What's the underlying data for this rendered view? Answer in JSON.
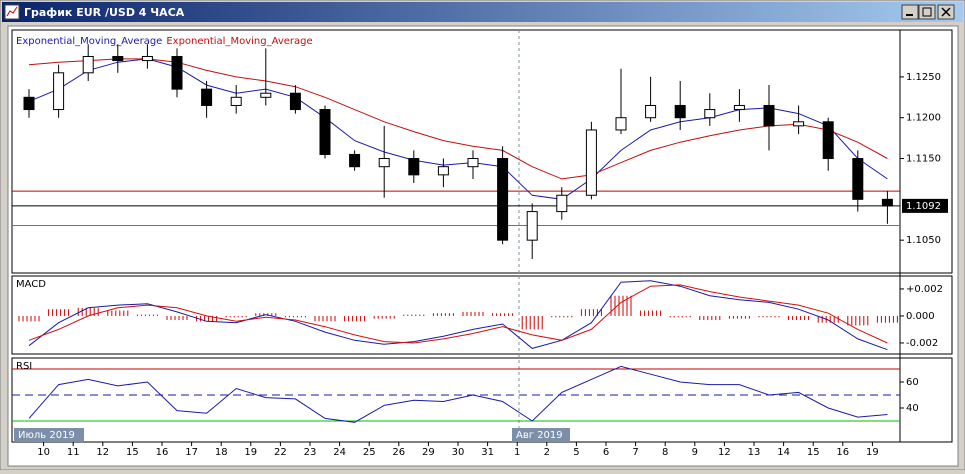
{
  "window": {
    "title": "График EUR /USD  4 ЧАСА",
    "month_labels": [
      "Июль 2019",
      "Авг 2019"
    ]
  },
  "chart_data": [
    {
      "type": "candlestick",
      "open": [
        1.1225,
        1.121,
        1.1255,
        1.1275,
        1.127,
        1.1275,
        1.1235,
        1.1215,
        1.1225,
        1.123,
        1.121,
        1.1155,
        1.114,
        1.115,
        1.113,
        1.114,
        1.115,
        1.105,
        1.1085,
        1.1105,
        1.1185,
        1.12,
        1.1215,
        1.12,
        1.121,
        1.1215,
        1.119,
        1.1195,
        1.115,
        1.11
      ],
      "high": [
        1.1235,
        1.1265,
        1.129,
        1.129,
        1.129,
        1.1285,
        1.1245,
        1.124,
        1.1285,
        1.124,
        1.1215,
        1.116,
        1.119,
        1.116,
        1.115,
        1.116,
        1.1165,
        1.1095,
        1.1115,
        1.1195,
        1.126,
        1.125,
        1.1245,
        1.123,
        1.1235,
        1.124,
        1.1215,
        1.12,
        1.116,
        1.111
      ],
      "low": [
        1.12,
        1.12,
        1.1245,
        1.1255,
        1.126,
        1.1225,
        1.12,
        1.1205,
        1.1215,
        1.1205,
        1.115,
        1.1135,
        1.1102,
        1.112,
        1.1115,
        1.1125,
        1.1045,
        1.1027,
        1.1075,
        1.11,
        1.118,
        1.1195,
        1.1185,
        1.119,
        1.1195,
        1.116,
        1.118,
        1.1135,
        1.1085,
        1.107
      ],
      "close": [
        1.121,
        1.1255,
        1.1275,
        1.127,
        1.1275,
        1.1235,
        1.1215,
        1.1225,
        1.123,
        1.121,
        1.1155,
        1.114,
        1.115,
        1.113,
        1.114,
        1.115,
        1.105,
        1.1085,
        1.1105,
        1.1185,
        1.12,
        1.1215,
        1.12,
        1.121,
        1.1215,
        1.119,
        1.1195,
        1.115,
        1.11,
        1.1092
      ],
      "series": [
        {
          "name": "Exponential_Moving_Average",
          "color": "#1a1aa8",
          "values": [
            1.122,
            1.1235,
            1.1258,
            1.1268,
            1.1272,
            1.1262,
            1.124,
            1.123,
            1.1235,
            1.1225,
            1.12,
            1.1172,
            1.1158,
            1.1148,
            1.1142,
            1.1145,
            1.114,
            1.1105,
            1.11,
            1.1125,
            1.116,
            1.1185,
            1.1195,
            1.12,
            1.121,
            1.1212,
            1.1205,
            1.119,
            1.115,
            1.1125
          ]
        },
        {
          "name": "Exponential_Moving_Average",
          "color": "#c01010",
          "values": [
            1.1265,
            1.1268,
            1.127,
            1.1272,
            1.1272,
            1.1268,
            1.1258,
            1.125,
            1.1245,
            1.1238,
            1.1225,
            1.121,
            1.1195,
            1.1183,
            1.1172,
            1.1165,
            1.116,
            1.114,
            1.1125,
            1.113,
            1.1145,
            1.116,
            1.117,
            1.1178,
            1.1185,
            1.119,
            1.1192,
            1.1185,
            1.117,
            1.115
          ]
        }
      ],
      "levels": [
        {
          "value": 1.111,
          "color": "#c00000"
        },
        {
          "value": 1.1068,
          "color": "#00c000"
        }
      ],
      "last_price": {
        "value": 1.1092,
        "label": "1.1092"
      },
      "ylim": [
        1.1011,
        1.1305
      ],
      "yticks": [
        {
          "value": 1.105,
          "label": "1.1050"
        },
        {
          "value": 1.115,
          "label": "1.1150"
        },
        {
          "value": 1.12,
          "label": "1.1200"
        },
        {
          "value": 1.125,
          "label": "1.1250"
        }
      ]
    },
    {
      "type": "macd",
      "title": "MACD",
      "histogram": {
        "color": "#d00000",
        "values": [
          -0.0004,
          0.0005,
          0.0006,
          0.0004,
          0.0001,
          -0.0003,
          -0.0004,
          -0.0001,
          0.0002,
          -0.0001,
          -0.0004,
          -0.0004,
          -0.0002,
          0.0001,
          0.0002,
          0.0003,
          0.0002,
          -0.001,
          -0.0001,
          0.0005,
          0.0015,
          0.0004,
          -0.0001,
          -0.0003,
          -0.0002,
          -0.0001,
          -0.0003,
          -0.0005,
          -0.0007,
          -0.0005
        ]
      },
      "series": [
        {
          "color": "#1a1aa8",
          "values": [
            -0.0022,
            -0.0005,
            0.0006,
            0.0008,
            0.0009,
            0.0003,
            -0.0004,
            -0.0005,
            0.0001,
            -0.0004,
            -0.0012,
            -0.0018,
            -0.0021,
            -0.0019,
            -0.0015,
            -0.001,
            -0.0006,
            -0.0024,
            -0.0018,
            -0.0005,
            0.0025,
            0.0026,
            0.0022,
            0.0015,
            0.0012,
            0.001,
            0.0005,
            -0.0003,
            -0.0017,
            -0.0025
          ]
        },
        {
          "color": "#d01010",
          "values": [
            -0.0018,
            -0.001,
            0.0,
            0.0006,
            0.0008,
            0.0006,
            0.0,
            -0.0004,
            -0.0001,
            -0.0003,
            -0.0008,
            -0.0014,
            -0.0019,
            -0.002,
            -0.0017,
            -0.0013,
            -0.0008,
            -0.0014,
            -0.0018,
            -0.001,
            0.001,
            0.0022,
            0.0023,
            0.0018,
            0.0014,
            0.0011,
            0.0008,
            0.0002,
            -0.001,
            -0.002
          ]
        }
      ],
      "ylim": [
        -0.00267,
        0.00281
      ],
      "yticks": [
        {
          "value": -0.002,
          "label": "-0.002"
        },
        {
          "value": 0,
          "label": "0.000"
        },
        {
          "value": 0.002,
          "label": "+0.002"
        }
      ]
    },
    {
      "type": "line",
      "title": "RSI",
      "categories": [
        null,
        "10",
        "11",
        "12",
        "15",
        "16",
        "17",
        "18",
        "19",
        "22",
        "23",
        "24",
        "25",
        "26",
        "29",
        "30",
        "31",
        "1",
        "2",
        "5",
        "6",
        "7",
        "8",
        "9",
        "12",
        "13",
        "14",
        "15",
        "16",
        "19"
      ],
      "series": [
        {
          "color": "#1a1aa8",
          "values": [
            32,
            58,
            62,
            57,
            60,
            38,
            36,
            55,
            48,
            47,
            32,
            29,
            42,
            46,
            45,
            50,
            45,
            30,
            52,
            62,
            72,
            66,
            60,
            58,
            58,
            50,
            52,
            40,
            33,
            35
          ]
        }
      ],
      "levels": [
        {
          "value": 70,
          "color": "#c00000",
          "dash": false
        },
        {
          "value": 50,
          "color": "#1a1aa8",
          "dash": true
        },
        {
          "value": 30,
          "color": "#00c000",
          "dash": false
        }
      ],
      "ylim": [
        15.4,
        76.9
      ],
      "yticks": [
        40,
        60
      ]
    }
  ]
}
